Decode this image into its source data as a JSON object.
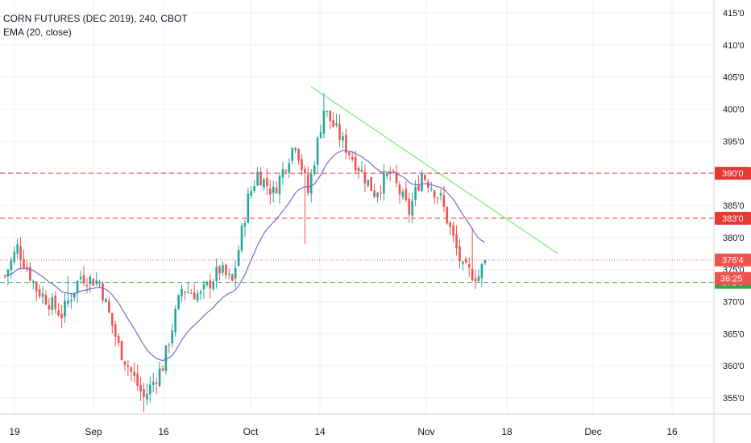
{
  "legend": {
    "title": "CORN FUTURES (DEC 2019), 240, CBOT",
    "indicator": "EMA (20, close)"
  },
  "colors": {
    "up": "#26a69a",
    "down": "#ef5350",
    "ema": "#7b68c8",
    "trendline": "#90ee90",
    "resistance": "#e53935",
    "support": "#43a047",
    "last_price": "#ef5350",
    "countdown_tag": "#ef5350",
    "grid": "#eef0f3"
  },
  "chart_data": {
    "type": "candlestick",
    "symbol": "CORN FUTURES (DEC 2019)",
    "timeframe": "240",
    "exchange": "CBOT",
    "indicator": "EMA (20, close)",
    "y_range": [
      352.5,
      417
    ],
    "y_ticks": [
      {
        "value": 355,
        "label": "355'0"
      },
      {
        "value": 360,
        "label": "360'0"
      },
      {
        "value": 365,
        "label": "365'0"
      },
      {
        "value": 370,
        "label": "370'0"
      },
      {
        "value": 375,
        "label": "375'0"
      },
      {
        "value": 380,
        "label": "380'0"
      },
      {
        "value": 385,
        "label": "385'0"
      },
      {
        "value": 390,
        "label": "390'0"
      },
      {
        "value": 395,
        "label": "395'0"
      },
      {
        "value": 400,
        "label": "400'0"
      },
      {
        "value": 405,
        "label": "405'0"
      },
      {
        "value": 410,
        "label": "410'0"
      },
      {
        "value": 415,
        "label": "415'0"
      }
    ],
    "x_ticks": [
      "19",
      "Sep",
      "16",
      "Oct",
      "14",
      "Nov",
      "18",
      "Dec",
      "16"
    ],
    "anchors": [
      {
        "bar": 0,
        "price": 374
      },
      {
        "bar": 4,
        "price": 378.5
      },
      {
        "bar": 10,
        "price": 372
      },
      {
        "bar": 18,
        "price": 368
      },
      {
        "bar": 24,
        "price": 374
      },
      {
        "bar": 30,
        "price": 373
      },
      {
        "bar": 36,
        "price": 363
      },
      {
        "bar": 44,
        "price": 355
      },
      {
        "bar": 50,
        "price": 360
      },
      {
        "bar": 56,
        "price": 372
      },
      {
        "bar": 62,
        "price": 371
      },
      {
        "bar": 68,
        "price": 375
      },
      {
        "bar": 72,
        "price": 373
      },
      {
        "bar": 77,
        "price": 386
      },
      {
        "bar": 80,
        "price": 390
      },
      {
        "bar": 85,
        "price": 387
      },
      {
        "bar": 92,
        "price": 395
      },
      {
        "bar": 96,
        "price": 387
      },
      {
        "bar": 101,
        "price": 400
      },
      {
        "bar": 108,
        "price": 394
      },
      {
        "bar": 112,
        "price": 391
      },
      {
        "bar": 117,
        "price": 387
      },
      {
        "bar": 122,
        "price": 390
      },
      {
        "bar": 128,
        "price": 384
      },
      {
        "bar": 132,
        "price": 390
      },
      {
        "bar": 138,
        "price": 386
      },
      {
        "bar": 145,
        "price": 375
      },
      {
        "bar": 150,
        "price": 374
      },
      {
        "bar": 152,
        "price": 376.5
      }
    ],
    "ema_period": 20,
    "trendline": {
      "from": {
        "bar": 97,
        "price": 403.5
      },
      "to": {
        "bar": 175,
        "price": 377.5
      }
    },
    "levels": [
      {
        "price": 390,
        "label": "390'0",
        "style": "dashed",
        "color": "#e53935"
      },
      {
        "price": 383,
        "label": "383'0",
        "style": "dashed",
        "color": "#e53935"
      },
      {
        "price": 373,
        "label": "373'0",
        "style": "dashed",
        "color": "#43a047"
      },
      {
        "price": 376.5,
        "label": "376'4",
        "style": "dotted",
        "color": "#ef5350"
      }
    ],
    "countdown": "36:25"
  }
}
